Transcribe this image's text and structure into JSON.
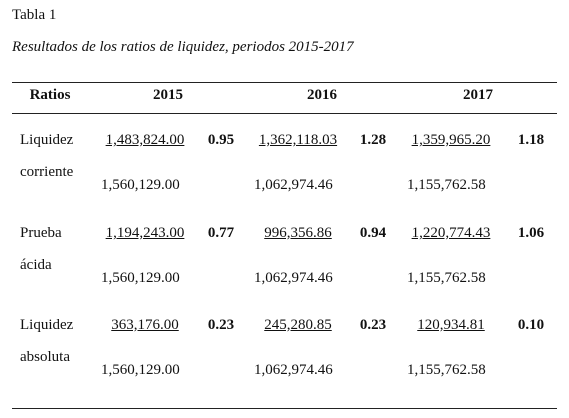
{
  "header": {
    "label": "Tabla 1",
    "caption": "Resultados de los ratios de liquidez, periodos 2015-2017"
  },
  "table": {
    "columns": [
      "Ratios",
      "2015",
      "2016",
      "2017"
    ],
    "rows": [
      {
        "label": [
          "Liquidez",
          "corriente"
        ],
        "years": [
          {
            "numerator": "1,483,824.00",
            "denominator": "1,560,129.00",
            "ratio": "0.95"
          },
          {
            "numerator": "1,362,118.03",
            "denominator": "1,062,974.46",
            "ratio": "1.28"
          },
          {
            "numerator": "1,359,965.20",
            "denominator": "1,155,762.58",
            "ratio": "1.18"
          }
        ]
      },
      {
        "label": [
          "Prueba",
          "ácida"
        ],
        "years": [
          {
            "numerator": "1,194,243.00",
            "denominator": "1,560,129.00",
            "ratio": "0.77"
          },
          {
            "numerator": "996,356.86",
            "denominator": "1,062,974.46",
            "ratio": "0.94"
          },
          {
            "numerator": "1,220,774.43",
            "denominator": "1,155,762.58",
            "ratio": "1.06"
          }
        ]
      },
      {
        "label": [
          "Liquidez",
          "absoluta"
        ],
        "years": [
          {
            "numerator": "363,176.00",
            "denominator": "1,560,129.00",
            "ratio": "0.23"
          },
          {
            "numerator": "245,280.85",
            "denominator": "1,062,974.46",
            "ratio": "0.23"
          },
          {
            "numerator": "120,934.81",
            "denominator": "1,155,762.58",
            "ratio": "0.10"
          }
        ]
      }
    ]
  }
}
